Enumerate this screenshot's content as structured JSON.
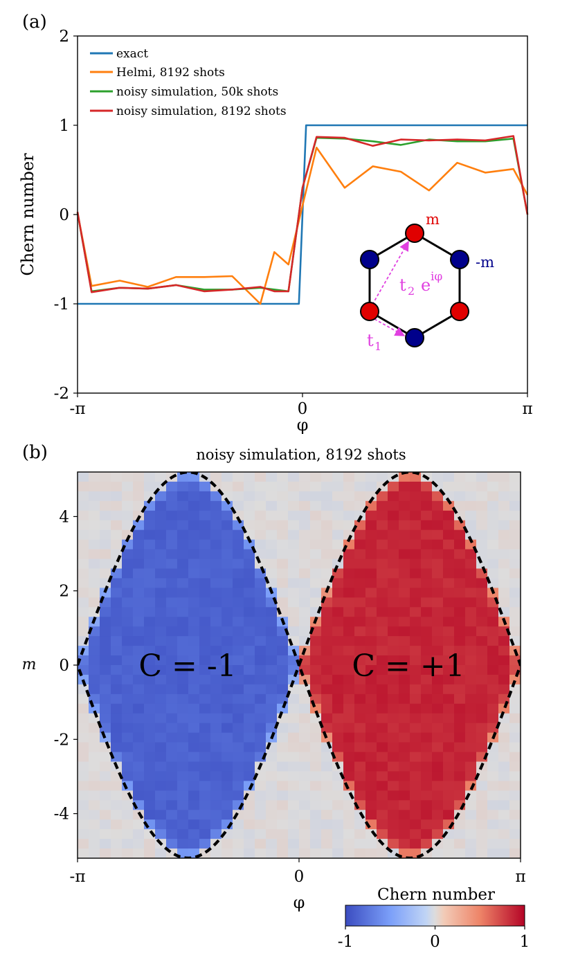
{
  "panel_a_label": "(a)",
  "panel_b_label": "(b)",
  "chart_data": [
    {
      "type": "line",
      "title": "",
      "xlabel": "φ",
      "ylabel": "Chern number",
      "xlim": [
        -3.14159,
        3.14159
      ],
      "ylim": [
        -2,
        2
      ],
      "xtick_values": [
        -3.14159,
        0,
        3.14159
      ],
      "xtick_labels": [
        "-π",
        "0",
        "π"
      ],
      "ytick_values": [
        -2,
        -1,
        0,
        1,
        2
      ],
      "ytick_labels": [
        "-2",
        "-1",
        "0",
        "1",
        "2"
      ],
      "legend_position": "top-left",
      "series": [
        {
          "name": "exact",
          "color": "#1f77b4",
          "step": true,
          "x": [
            -3.14159,
            -0.05,
            0.05,
            3.14159
          ],
          "y": [
            -1,
            -1,
            1,
            1
          ]
        },
        {
          "name": "Helmi, 8192 shots",
          "color": "#ff7f0e",
          "x": [
            -3.14159,
            -2.945,
            -2.552,
            -2.16,
            -1.767,
            -1.374,
            -0.982,
            -0.589,
            -0.393,
            -0.196,
            0.0,
            0.196,
            0.589,
            0.982,
            1.374,
            1.767,
            2.16,
            2.552,
            2.945,
            3.14159
          ],
          "y": [
            0.02,
            -0.8,
            -0.74,
            -0.81,
            -0.7,
            -0.7,
            -0.69,
            -1.0,
            -0.42,
            -0.56,
            0.1,
            0.75,
            0.3,
            0.54,
            0.48,
            0.27,
            0.58,
            0.47,
            0.51,
            0.22
          ]
        },
        {
          "name": "noisy simulation, 50k shots",
          "color": "#2ca02c",
          "x": [
            -3.14159,
            -2.945,
            -2.552,
            -2.16,
            -1.767,
            -1.374,
            -0.982,
            -0.589,
            -0.196,
            0.0,
            0.196,
            0.589,
            0.982,
            1.374,
            1.767,
            2.16,
            2.552,
            2.945,
            3.14159
          ],
          "y": [
            0.02,
            -0.86,
            -0.82,
            -0.83,
            -0.79,
            -0.84,
            -0.84,
            -0.82,
            -0.86,
            0.3,
            0.86,
            0.85,
            0.82,
            0.78,
            0.84,
            0.82,
            0.82,
            0.85,
            0.0
          ]
        },
        {
          "name": "noisy simulation, 8192 shots",
          "color": "#d62728",
          "x": [
            -3.14159,
            -2.945,
            -2.552,
            -2.16,
            -1.767,
            -1.374,
            -0.982,
            -0.589,
            -0.393,
            -0.196,
            0.0,
            0.196,
            0.589,
            0.982,
            1.374,
            1.767,
            2.16,
            2.552,
            2.945,
            3.14159
          ],
          "y": [
            0.03,
            -0.87,
            -0.82,
            -0.83,
            -0.79,
            -0.86,
            -0.84,
            -0.81,
            -0.86,
            -0.86,
            0.3,
            0.87,
            0.86,
            0.77,
            0.84,
            0.83,
            0.84,
            0.83,
            0.88,
            0.0
          ]
        }
      ],
      "inset": {
        "label_m": "m",
        "label_minus_m": "-m",
        "label_t1": "t",
        "label_t1_sub": "1",
        "label_t2": "t",
        "label_t2_sub": "2",
        "label_exp": "e",
        "label_exp_sup": "iφ",
        "sublattice_a_color": "#e00000",
        "sublattice_b_color": "#00008b",
        "hopping_color": "#e040e0"
      }
    },
    {
      "type": "heatmap",
      "title": "noisy simulation, 8192 shots",
      "xlabel": "φ",
      "ylabel": "m",
      "xlim": [
        -3.14159,
        3.14159
      ],
      "ylim": [
        -5.2,
        5.2
      ],
      "xtick_values": [
        -3.14159,
        0,
        3.14159
      ],
      "xtick_labels": [
        "-π",
        "0",
        "π"
      ],
      "ytick_values": [
        4,
        2,
        0,
        -2,
        -4
      ],
      "ytick_labels": [
        "4",
        "2",
        "0",
        "-2",
        "-4"
      ],
      "grid_cols": 40,
      "grid_rows": 40,
      "phase_boundary": "m = ±3√3·sin(φ)",
      "phase_boundary_amplitude": 5.196,
      "regions": [
        {
          "label": "C = -1",
          "value": -1,
          "phi_center": -1.5708
        },
        {
          "label": "C = +1",
          "value": 1,
          "phi_center": 1.5708
        }
      ],
      "colorbar": {
        "label": "Chern number",
        "range": [
          -1,
          1
        ],
        "tick_values": [
          -1,
          0,
          1
        ],
        "tick_labels": [
          "-1",
          "0",
          "1"
        ],
        "colormap": "coolwarm",
        "low_color": "#3b4cc0",
        "mid_color": "#dddddd",
        "high_color": "#b40426"
      }
    }
  ]
}
